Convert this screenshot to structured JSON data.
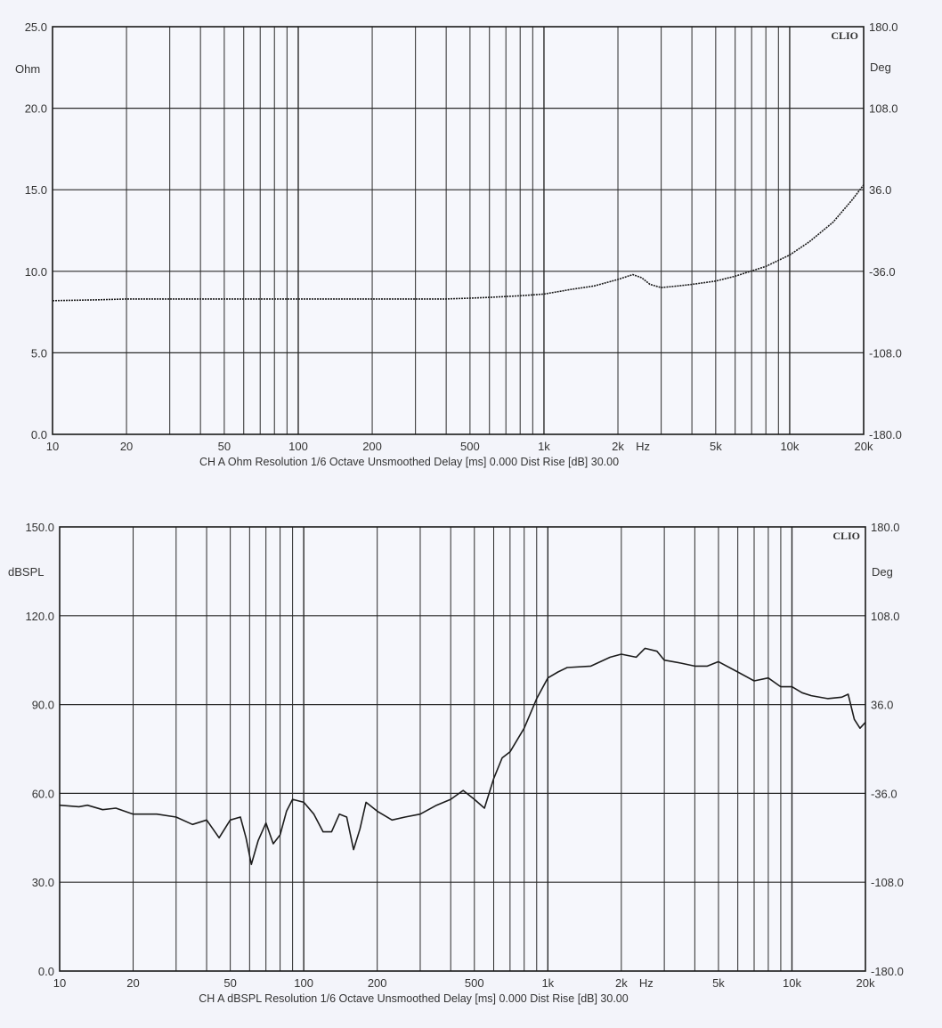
{
  "brand": "CLIO",
  "chart_data": [
    {
      "type": "line",
      "xscale": "log",
      "xlim": [
        10,
        20000
      ],
      "ylim": [
        0,
        25
      ],
      "y2lim": [
        -180,
        180
      ],
      "ylabel": "Ohm",
      "y2label": "Deg",
      "xlabel_unit": "Hz",
      "y_ticks": [
        "0.0",
        "5.0",
        "10.0",
        "15.0",
        "20.0",
        "25.0"
      ],
      "y2_ticks": [
        "-180.0",
        "-108.0",
        "-36.0",
        "36.0",
        "108.0",
        "180.0"
      ],
      "x_ticks": [
        "10",
        "20",
        "50",
        "100",
        "200",
        "500",
        "1k",
        "2k",
        "5k",
        "10k",
        "20k"
      ],
      "footer": "CH A   Ohm   Resolution 1/6 Octave   Unsmoothed   Delay [ms] 0.000    Dist Rise [dB] 30.00",
      "series": [
        {
          "x": [
            10,
            15,
            20,
            30,
            50,
            100,
            200,
            300,
            400,
            500,
            600,
            800,
            1000,
            1300,
            1600,
            2000,
            2300,
            2500,
            2700,
            3000,
            3500,
            4000,
            5000,
            6000,
            8000,
            10000,
            12000,
            15000,
            18000,
            20000
          ],
          "values": [
            8.2,
            8.25,
            8.3,
            8.3,
            8.3,
            8.3,
            8.3,
            8.3,
            8.3,
            8.35,
            8.4,
            8.5,
            8.6,
            8.9,
            9.1,
            9.5,
            9.8,
            9.6,
            9.2,
            9.0,
            9.1,
            9.2,
            9.4,
            9.7,
            10.3,
            11.0,
            11.8,
            13.0,
            14.4,
            15.3
          ]
        }
      ]
    },
    {
      "type": "line",
      "xscale": "log",
      "xlim": [
        10,
        20000
      ],
      "ylim": [
        0,
        150
      ],
      "y2lim": [
        -180,
        180
      ],
      "ylabel": "dBSPL",
      "y2label": "Deg",
      "xlabel_unit": "Hz",
      "y_ticks": [
        "0.0",
        "30.0",
        "60.0",
        "90.0",
        "120.0",
        "150.0"
      ],
      "y2_ticks": [
        "-180.0",
        "-108.0",
        "-36.0",
        "36.0",
        "108.0",
        "180.0"
      ],
      "x_ticks": [
        "10",
        "20",
        "50",
        "100",
        "200",
        "500",
        "1k",
        "2k",
        "5k",
        "10k",
        "20k"
      ],
      "footer": "CH A   dBSPL   Resolution 1/6 Octave   Unsmoothed   Delay [ms] 0.000    Dist Rise [dB] 30.00",
      "series": [
        {
          "x": [
            10,
            12,
            13,
            15,
            17,
            20,
            25,
            30,
            35,
            40,
            45,
            50,
            55,
            58,
            61,
            65,
            70,
            75,
            80,
            85,
            90,
            100,
            110,
            120,
            130,
            140,
            150,
            160,
            170,
            180,
            200,
            230,
            260,
            300,
            350,
            400,
            450,
            500,
            550,
            600,
            650,
            700,
            800,
            900,
            1000,
            1100,
            1200,
            1500,
            1800,
            2000,
            2300,
            2500,
            2800,
            3000,
            3500,
            4000,
            4500,
            5000,
            6000,
            7000,
            8000,
            9000,
            10000,
            11000,
            12000,
            14000,
            16000,
            17000,
            18000,
            19000,
            20000
          ],
          "values": [
            56,
            55.5,
            56,
            54.5,
            55,
            53,
            53,
            52,
            49.5,
            51,
            45,
            51,
            52,
            45,
            36,
            44,
            50,
            43,
            46,
            54,
            58,
            57,
            53,
            47,
            47,
            53,
            52,
            41,
            48,
            57,
            54,
            51,
            52,
            53,
            56,
            58,
            61,
            58,
            55,
            65,
            72,
            74,
            82,
            92,
            99,
            101,
            102.5,
            103,
            106,
            107,
            106,
            109,
            108,
            105,
            104,
            103,
            103,
            104.5,
            101,
            98,
            99,
            96,
            96,
            94,
            93,
            92,
            92.5,
            93.5,
            85,
            82,
            84
          ]
        }
      ]
    }
  ]
}
